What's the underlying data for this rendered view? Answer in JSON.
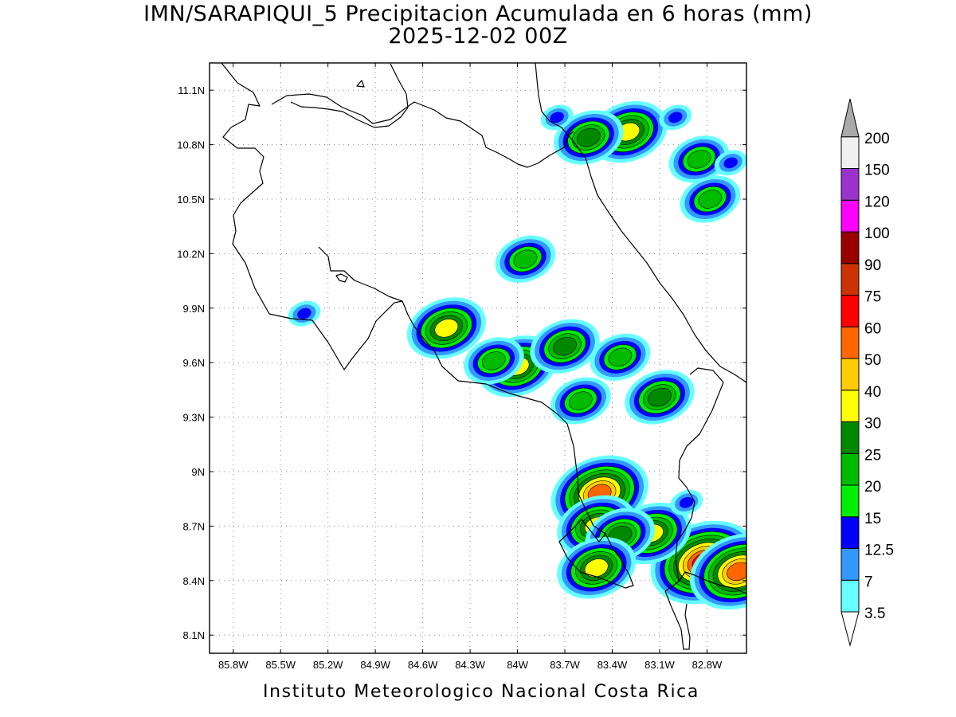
{
  "map": {
    "title": "IMN/SARAPIQUI_5 Precipitacion Acumulada en 6 horas (mm)",
    "subtitle": "2025-12-02 00Z",
    "footer": "Instituto Meteorologico Nacional Costa Rica",
    "lon_range": [
      -85.95,
      -82.55
    ],
    "lat_range": [
      8.0,
      11.25
    ],
    "lon_ticks": [
      {
        "value": -85.8,
        "label": "85.8W"
      },
      {
        "value": -85.5,
        "label": "85.5W"
      },
      {
        "value": -85.2,
        "label": "85.2W"
      },
      {
        "value": -84.9,
        "label": "84.9W"
      },
      {
        "value": -84.6,
        "label": "84.6W"
      },
      {
        "value": -84.3,
        "label": "84.3W"
      },
      {
        "value": -84.0,
        "label": "84W"
      },
      {
        "value": -83.7,
        "label": "83.7W"
      },
      {
        "value": -83.4,
        "label": "83.4W"
      },
      {
        "value": -83.1,
        "label": "83.1W"
      },
      {
        "value": -82.8,
        "label": "82.8W"
      }
    ],
    "lat_ticks": [
      {
        "value": 11.1,
        "label": "11.1N"
      },
      {
        "value": 10.8,
        "label": "10.8N"
      },
      {
        "value": 10.5,
        "label": "10.5N"
      },
      {
        "value": 10.2,
        "label": "10.2N"
      },
      {
        "value": 9.9,
        "label": "9.9N"
      },
      {
        "value": 9.6,
        "label": "9.6N"
      },
      {
        "value": 9.3,
        "label": "9.3N"
      },
      {
        "value": 9.0,
        "label": "9N"
      },
      {
        "value": 8.7,
        "label": "8.7N"
      },
      {
        "value": 8.4,
        "label": "8.4N"
      },
      {
        "value": 8.1,
        "label": "8.1N"
      }
    ],
    "gridlines": true
  },
  "colorbar": {
    "levels": [
      {
        "label": "3.5",
        "color": "#66ffff"
      },
      {
        "label": "7",
        "color": "#3399ff"
      },
      {
        "label": "12.5",
        "color": "#0000ff"
      },
      {
        "label": "15",
        "color": "#00ee00"
      },
      {
        "label": "20",
        "color": "#00bb00"
      },
      {
        "label": "25",
        "color": "#008800"
      },
      {
        "label": "30",
        "color": "#ffff00"
      },
      {
        "label": "40",
        "color": "#ffcc00"
      },
      {
        "label": "50",
        "color": "#ff6600"
      },
      {
        "label": "60",
        "color": "#ff0000"
      },
      {
        "label": "75",
        "color": "#cc3300"
      },
      {
        "label": "90",
        "color": "#990000"
      },
      {
        "label": "100",
        "color": "#ff00ff"
      },
      {
        "label": "120",
        "color": "#9933cc"
      },
      {
        "label": "150",
        "color": "#f0f0f0"
      },
      {
        "label": "200",
        "color": "#aaaaaa"
      }
    ]
  },
  "precip_cells": [
    {
      "lon": -83.3,
      "lat": 10.87,
      "max_mm": 30
    },
    {
      "lon": -83.55,
      "lat": 10.84,
      "max_mm": 25
    },
    {
      "lon": -83.75,
      "lat": 10.95,
      "max_mm": 12.5
    },
    {
      "lon": -83.0,
      "lat": 10.95,
      "max_mm": 12.5
    },
    {
      "lon": -82.78,
      "lat": 10.5,
      "max_mm": 20
    },
    {
      "lon": -82.85,
      "lat": 10.72,
      "max_mm": 20
    },
    {
      "lon": -82.65,
      "lat": 10.7,
      "max_mm": 12.5
    },
    {
      "lon": -83.95,
      "lat": 10.17,
      "max_mm": 20
    },
    {
      "lon": -84.45,
      "lat": 9.79,
      "max_mm": 30
    },
    {
      "lon": -84.0,
      "lat": 9.58,
      "max_mm": 30
    },
    {
      "lon": -83.7,
      "lat": 9.69,
      "max_mm": 25
    },
    {
      "lon": -83.35,
      "lat": 9.63,
      "max_mm": 20
    },
    {
      "lon": -83.1,
      "lat": 9.41,
      "max_mm": 25
    },
    {
      "lon": -83.6,
      "lat": 9.39,
      "max_mm": 20
    },
    {
      "lon": -84.15,
      "lat": 9.61,
      "max_mm": 20
    },
    {
      "lon": -85.35,
      "lat": 9.87,
      "max_mm": 12.5
    },
    {
      "lon": -83.48,
      "lat": 8.88,
      "max_mm": 50
    },
    {
      "lon": -83.5,
      "lat": 8.7,
      "max_mm": 30
    },
    {
      "lon": -82.82,
      "lat": 8.5,
      "max_mm": 60
    },
    {
      "lon": -82.6,
      "lat": 8.45,
      "max_mm": 50
    },
    {
      "lon": -83.15,
      "lat": 8.66,
      "max_mm": 30
    },
    {
      "lon": -83.35,
      "lat": 8.65,
      "max_mm": 25
    },
    {
      "lon": -83.5,
      "lat": 8.47,
      "max_mm": 30
    },
    {
      "lon": -82.93,
      "lat": 8.83,
      "max_mm": 12.5
    }
  ]
}
